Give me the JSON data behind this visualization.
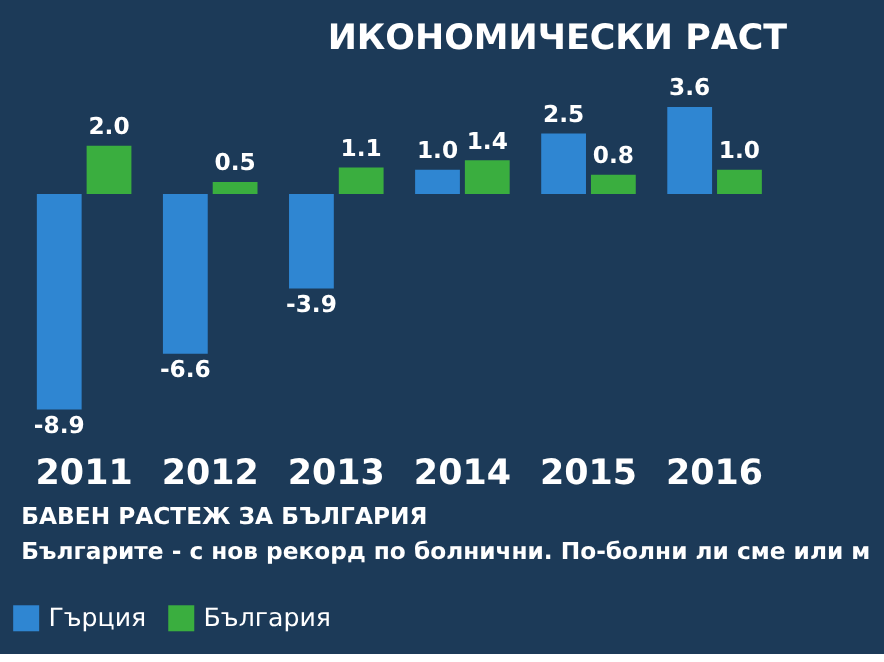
{
  "chart_data": {
    "type": "bar",
    "title": "ИКОНОМИЧЕСКИ РАСТ",
    "categories": [
      "2011",
      "2012",
      "2013",
      "2014",
      "2015",
      "2016"
    ],
    "series": [
      {
        "name": "Гърция",
        "color": "#2f86d2",
        "values": [
          -8.9,
          -6.6,
          -3.9,
          1.0,
          2.5,
          3.6
        ],
        "value_labels": [
          "-8.9",
          "-6.6",
          "-3.9",
          "1.0",
          "2.5",
          "3.6"
        ]
      },
      {
        "name": "България",
        "color": "#3aae3f",
        "values": [
          2.0,
          0.5,
          1.1,
          1.4,
          0.8,
          1.0
        ],
        "value_labels": [
          "2.0",
          "0.5",
          "1.1",
          "1.4",
          "0.8",
          "1.0"
        ]
      }
    ],
    "legend": "bottom",
    "annotations": [
      "БАВЕН РАСТЕЖ ЗА БЪЛГАРИЯ",
      "Българите - с нов рекорд по болнични. По-болни ли сме или м"
    ]
  }
}
